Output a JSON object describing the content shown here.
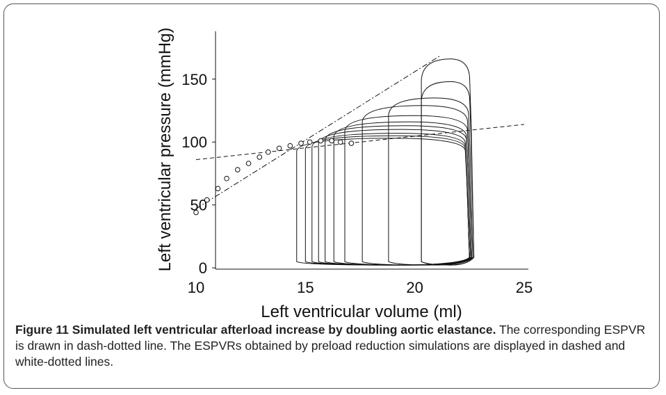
{
  "chart_data": {
    "type": "pv-loops",
    "xlabel": "Left ventricular volume (ml)",
    "ylabel": "Left ventricular pressure (mmHg)",
    "xlim": [
      10,
      25
    ],
    "xticks": [
      10,
      15,
      20,
      25
    ],
    "ylim": [
      -1,
      188
    ],
    "yticks": [
      0,
      50,
      100,
      150
    ],
    "loops": {
      "esv": [
        14.6,
        15.0,
        15.3,
        15.6,
        15.9,
        16.3,
        16.8,
        17.6,
        18.8,
        20.3
      ],
      "edv": [
        22.5,
        22.5,
        22.5,
        22.5,
        22.55,
        22.55,
        22.6,
        22.6,
        22.65,
        22.7
      ],
      "pmax": [
        103,
        105,
        107,
        110,
        113,
        116,
        121,
        129,
        135,
        148
      ],
      "pmin": 5,
      "color": "#111"
    },
    "tall_loop": {
      "esv": 20.3,
      "edv": 22.7,
      "pmax": 166
    },
    "points": {
      "x": [
        10,
        10.5,
        11,
        11.4,
        11.9,
        12.4,
        12.9,
        13.3,
        13.8,
        14.3,
        14.8,
        15.2,
        15.7,
        16.2,
        16.6,
        17.1
      ],
      "y": [
        44,
        54,
        63,
        71,
        78,
        83,
        88,
        92,
        95,
        97,
        99,
        100,
        101,
        101,
        100,
        99
      ]
    },
    "series": [
      {
        "style": "dashed",
        "x": [
          10,
          25
        ],
        "y": [
          86,
          114
        ]
      },
      {
        "style": "dash-dot",
        "x": [
          10,
          21.2
        ],
        "y": [
          47,
          169
        ]
      }
    ]
  },
  "caption": {
    "bold": "Figure 11 Simulated left ventricular afterload increase by doubling aortic elastance.",
    "text": " The corresponding ESPVR is drawn in dash-dotted line. The ESPVRs obtained by preload reduction simulations are displayed in dashed and white-dotted lines."
  }
}
